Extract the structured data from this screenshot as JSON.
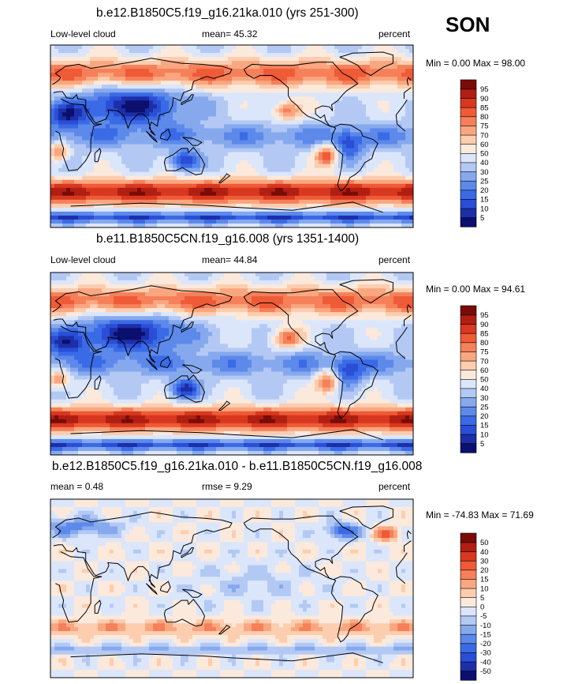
{
  "season": "SON",
  "colors": {
    "cloud_levels": [
      "#0b0f6e",
      "#1c2fa8",
      "#2a4ed6",
      "#3a6ae6",
      "#5c89ea",
      "#86a9ee",
      "#b3c9f4",
      "#dbe6fb",
      "#fbe9dc",
      "#fccdae",
      "#f9a780",
      "#f5805a",
      "#ef5a37",
      "#d8381f",
      "#b01f12",
      "#7a0c08"
    ],
    "diff_levels": [
      "#0b0f6e",
      "#1c2fa8",
      "#2a4ed6",
      "#3a6ae6",
      "#5c89ea",
      "#86a9ee",
      "#b3c9f4",
      "#dbe6fb",
      "#fbe9dc",
      "#fccdae",
      "#f9a780",
      "#f5805a",
      "#ef5a37",
      "#d8381f",
      "#b01f12",
      "#7a0c08"
    ],
    "coast": "#000000"
  },
  "chart_data": [
    {
      "type": "heatmap",
      "title": "b.e12.B1850C5.f19_g16.21ka.010 (yrs 251-300)",
      "left_label": "Low-level cloud",
      "stat_text": "mean=  45.32",
      "unit": "percent",
      "range_text": "Min =   0.00 Max =  98.00",
      "colorbar_labels": [
        "5",
        "10",
        "15",
        "20",
        "25",
        "30",
        "40",
        "50",
        "60",
        "70",
        "75",
        "80",
        "85",
        "90",
        "95"
      ],
      "mean": 45.32,
      "min": 0.0,
      "max": 98.0
    },
    {
      "type": "heatmap",
      "title": "b.e11.B1850C5CN.f19_g16.008 (yrs 1351-1400)",
      "left_label": "Low-level cloud",
      "stat_text": "mean=  44.84",
      "unit": "percent",
      "range_text": "Min =   0.00 Max =  94.61",
      "colorbar_labels": [
        "5",
        "10",
        "15",
        "20",
        "25",
        "30",
        "40",
        "50",
        "60",
        "70",
        "75",
        "80",
        "85",
        "90",
        "95"
      ],
      "mean": 44.84,
      "min": 0.0,
      "max": 94.61
    },
    {
      "type": "heatmap",
      "title": "b.e12.B1850C5.f19_g16.21ka.010 - b.e11.B1850C5CN.f19_g16.008",
      "left_label": "mean =   0.48",
      "stat_text": "rmse =   9.29",
      "unit": "percent",
      "range_text": "Min = -74.83 Max =  71.69",
      "colorbar_labels": [
        "-50",
        "-40",
        "-30",
        "-20",
        "-15",
        "-10",
        "-5",
        "0",
        "5",
        "10",
        "15",
        "20",
        "30",
        "40",
        "50"
      ],
      "mean": 0.48,
      "rmse": 9.29,
      "min": -74.83,
      "max": 71.69
    }
  ]
}
